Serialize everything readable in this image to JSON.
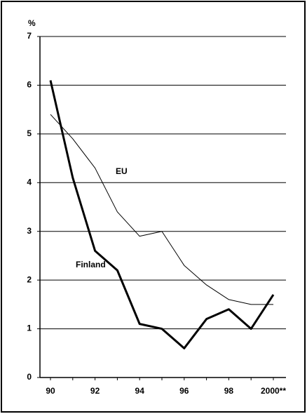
{
  "chart_data": {
    "type": "line",
    "y_label": "%",
    "categories": [
      "90",
      null,
      "92",
      null,
      "94",
      null,
      "96",
      null,
      "98",
      null,
      "2000**"
    ],
    "series": [
      {
        "name": "EU",
        "color": "#000000",
        "width": 1,
        "values": [
          5.4,
          4.9,
          4.3,
          3.4,
          2.9,
          3.0,
          2.3,
          1.9,
          1.6,
          1.5,
          1.5
        ]
      },
      {
        "name": "Finland",
        "color": "#000000",
        "width": 3,
        "values": [
          6.1,
          4.1,
          2.6,
          2.2,
          1.1,
          1.0,
          0.6,
          1.2,
          1.4,
          1.0,
          1.7
        ]
      }
    ],
    "ylim": [
      0,
      7
    ],
    "yticks": [
      0,
      1,
      2,
      3,
      4,
      5,
      6,
      7
    ],
    "grid": true
  }
}
